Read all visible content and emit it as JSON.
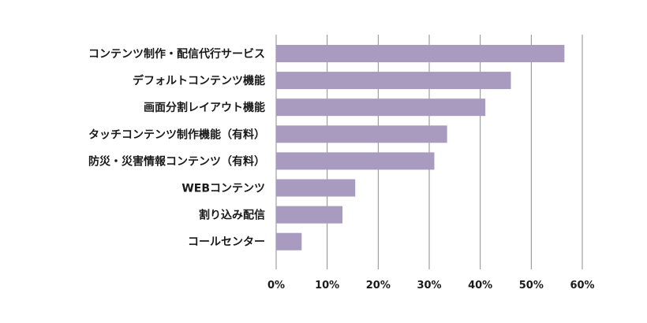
{
  "chart_data": {
    "type": "bar",
    "orientation": "horizontal",
    "categories": [
      "コンテンツ制作・配信代行サービス",
      "デフォルトコンテンツ機能",
      "画面分割レイアウト機能",
      "タッチコンテンツ制作機能（有料）",
      "防災・災害情報コンテンツ（有料）",
      "WEBコンテンツ",
      "割り込み配信",
      "コールセンター"
    ],
    "values": [
      56.5,
      46,
      41,
      33.5,
      31,
      15.5,
      13,
      5
    ],
    "xlim": [
      0,
      60
    ],
    "ticks": [
      0,
      10,
      20,
      30,
      40,
      50,
      60
    ],
    "tick_labels": [
      "0%",
      "10%",
      "20%",
      "30%",
      "40%",
      "50%",
      "60%"
    ],
    "grid": true,
    "bar_color": "#a89bbf",
    "title": "",
    "xlabel": "",
    "ylabel": ""
  }
}
